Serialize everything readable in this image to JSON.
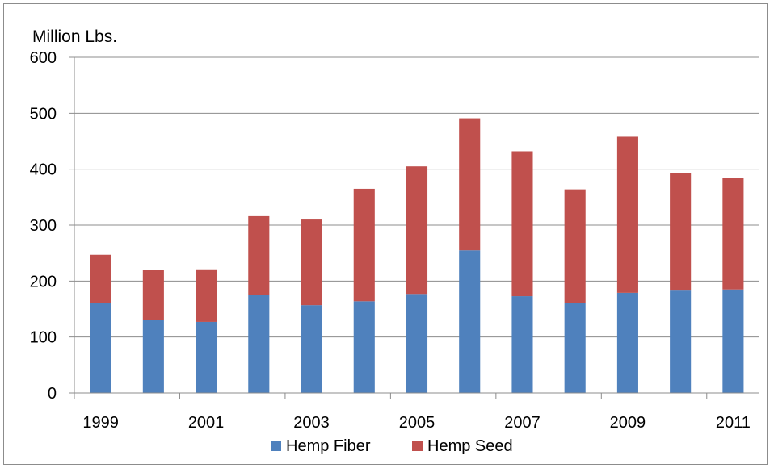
{
  "chart_data": {
    "type": "bar",
    "stacked": true,
    "title": "",
    "ylabel": "Million Lbs.",
    "xlabel": "",
    "ylim": [
      0,
      600
    ],
    "yticks": [
      0,
      100,
      200,
      300,
      400,
      500,
      600
    ],
    "categories": [
      "1999",
      "2000",
      "2001",
      "2002",
      "2003",
      "2004",
      "2005",
      "2006",
      "2007",
      "2008",
      "2009",
      "2010",
      "2011"
    ],
    "x_tick_labels_shown": [
      "1999",
      "2001",
      "2003",
      "2005",
      "2007",
      "2009",
      "2011"
    ],
    "grid": true,
    "legend_position": "bottom",
    "series": [
      {
        "name": "Hemp Fiber",
        "color": "#4F81BD",
        "values": [
          161,
          131,
          127,
          175,
          157,
          164,
          177,
          255,
          173,
          161,
          179,
          183,
          185
        ]
      },
      {
        "name": "Hemp Seed",
        "color": "#C0504D",
        "values": [
          86,
          89,
          94,
          141,
          153,
          201,
          228,
          236,
          259,
          203,
          279,
          210,
          199
        ]
      }
    ]
  }
}
